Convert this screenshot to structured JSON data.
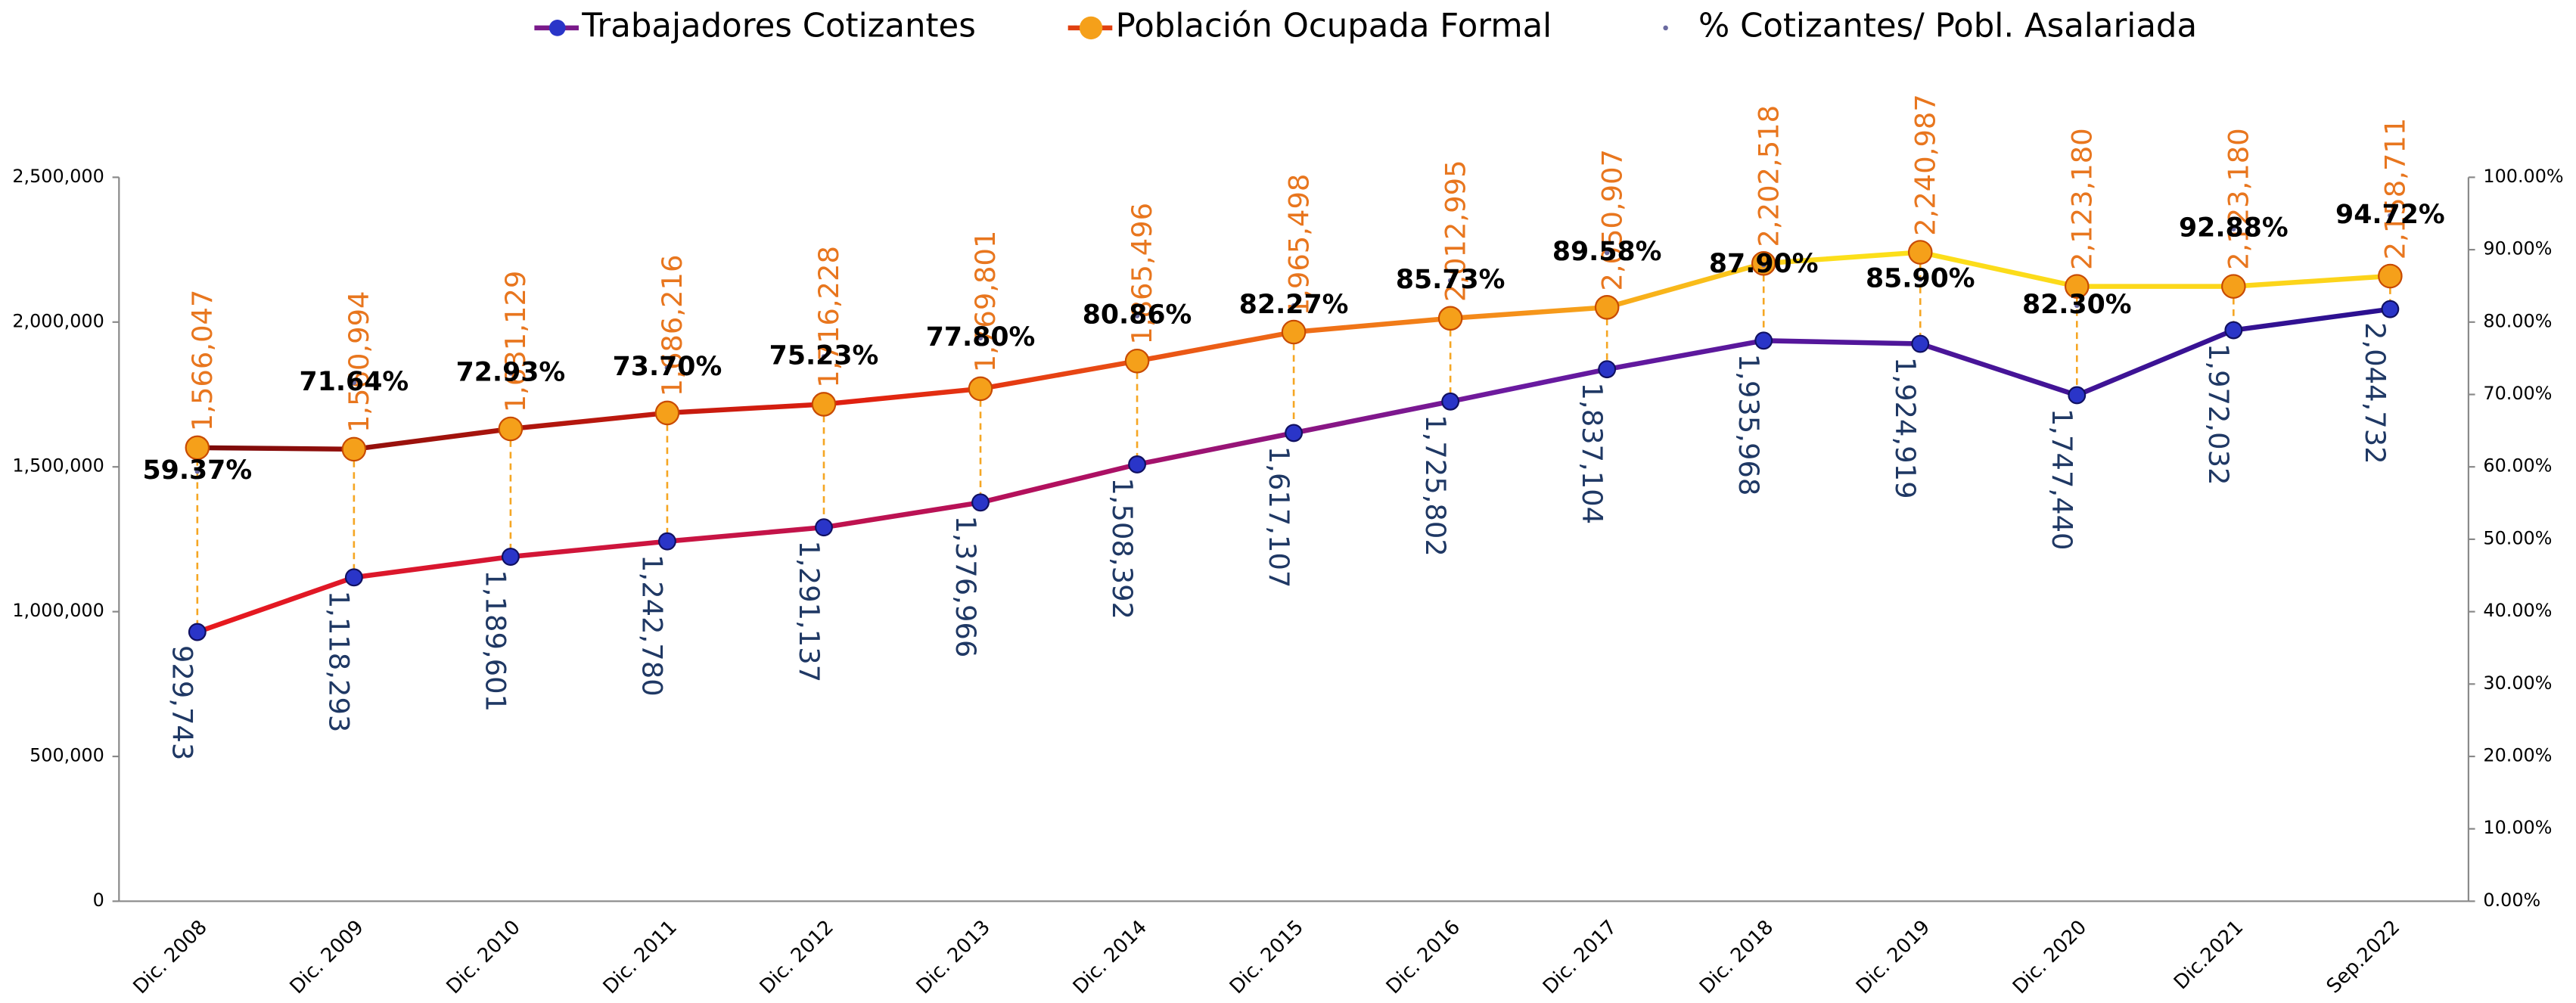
{
  "chart_data": {
    "type": "line",
    "categories": [
      "Dic. 2008",
      "Dic. 2009",
      "Dic. 2010",
      "Dic. 2011",
      "Dic. 2012",
      "Dic. 2013",
      "Dic. 2014",
      "Dic. 2015",
      "Dic. 2016",
      "Dic. 2017",
      "Dic. 2018",
      "Dic. 2019",
      "Dic. 2020",
      "Dic.2021",
      "Sep.2022"
    ],
    "series": [
      {
        "name": "Trabajadores Cotizantes",
        "color": "#2a35c8",
        "values": [
          929743,
          1118293,
          1189601,
          1242780,
          1291137,
          1376966,
          1508392,
          1617107,
          1725802,
          1837104,
          1935968,
          1924919,
          1747440,
          1972032,
          2044732
        ],
        "value_labels": [
          "929,743",
          "1,118,293",
          "1,189,601",
          "1,242,780",
          "1,291,137",
          "1,376,966",
          "1,508,392",
          "1,617,107",
          "1,725,802",
          "1,837,104",
          "1,935,968",
          "1,924,919",
          "1,747,440",
          "1,972,032",
          "2,044,732"
        ]
      },
      {
        "name": "Población Ocupada Formal",
        "color": "#f5a01a",
        "values": [
          1566047,
          1560994,
          1631129,
          1686216,
          1716228,
          1769801,
          1865496,
          1965498,
          2012995,
          2050907,
          2202518,
          2240987,
          2123180,
          2123180,
          2158711
        ],
        "value_labels": [
          "1,566,047",
          "1,560,994",
          "1,631,129",
          "1,686,216",
          "1,716,228",
          "1,769,801",
          "1,865,496",
          "1,965,498",
          "2,012,995",
          "2,050,907",
          "2,202,518",
          "2,240,987",
          "2,123,180",
          "2,123,180",
          "2,158,711"
        ]
      },
      {
        "name": "% Cotizantes/ Pobl. Asalariada",
        "color": "#6a6aa0",
        "axis": "y2",
        "values": [
          59.37,
          71.64,
          72.93,
          73.7,
          75.23,
          77.8,
          80.86,
          82.27,
          85.73,
          89.58,
          87.9,
          85.9,
          82.3,
          92.88,
          94.72
        ],
        "value_labels": [
          "59.37%",
          "71.64%",
          "72.93%",
          "73.70%",
          "75.23%",
          "77.80%",
          "80.86%",
          "82.27%",
          "85.73%",
          "89.58%",
          "87.90%",
          "85.90%",
          "82.30%",
          "92.88%",
          "94.72%"
        ]
      }
    ],
    "ylim": [
      0,
      2500000
    ],
    "yticks": [
      0,
      {
        "value": 500000,
        "label": "500,000"
      },
      {
        "value": 1000000,
        "label": "1,000,000"
      },
      {
        "value": 1500000,
        "label": "1,500,000"
      },
      {
        "value": 2000000,
        "label": "2,000,000"
      },
      {
        "value": 2500000,
        "label": "2,500,000"
      }
    ],
    "y2lim": [
      0,
      100
    ],
    "y2ticks": [
      {
        "value": 0,
        "label": "0.00%"
      },
      {
        "value": 10,
        "label": "10.00%"
      },
      {
        "value": 20,
        "label": "20.00%"
      },
      {
        "value": 30,
        "label": "30.00%"
      },
      {
        "value": 40,
        "label": "40.00%"
      },
      {
        "value": 50,
        "label": "50.00%"
      },
      {
        "value": 60,
        "label": "60.00%"
      },
      {
        "value": 70,
        "label": "70.00%"
      },
      {
        "value": 80,
        "label": "80.00%"
      },
      {
        "value": 90,
        "label": "90.00%"
      },
      {
        "value": 100,
        "label": "100.00%"
      }
    ],
    "legend": "top",
    "grid": false
  }
}
